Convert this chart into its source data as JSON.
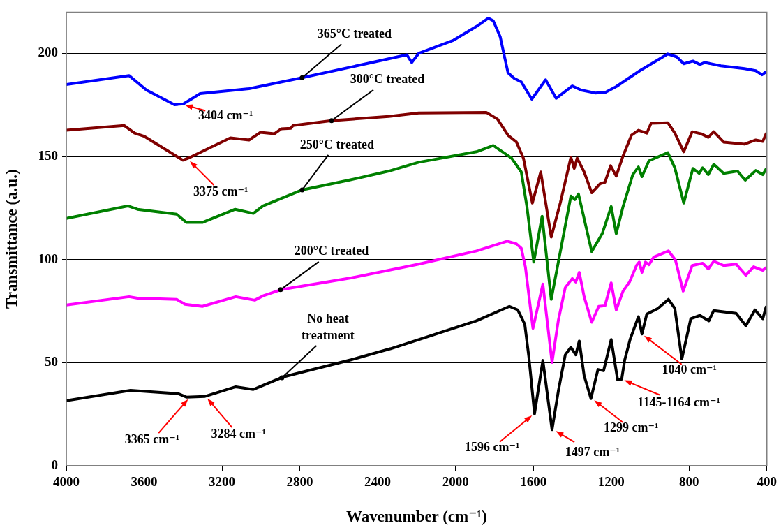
{
  "chart_data": {
    "type": "line",
    "xlabel": "Wavenumber (cm⁻¹)",
    "ylabel": "Transmittance (a.u.)",
    "xlim": [
      4000,
      400
    ],
    "xticks": [
      4000,
      3600,
      3200,
      2800,
      2400,
      2000,
      1600,
      1200,
      800,
      400
    ],
    "ylim": [
      0,
      220
    ],
    "yticks": [
      0,
      50,
      100,
      150,
      200
    ],
    "grid": "y",
    "legend": false,
    "marker": "none",
    "line_style": "solid",
    "series": [
      {
        "color": "#0000ff",
        "x": [
          4000,
          3677,
          3588,
          3444,
          3398,
          3312,
          3061,
          2788,
          2250,
          2225,
          2189,
          2010,
          1892,
          1831,
          1806,
          1770,
          1748,
          1730,
          1698,
          1662,
          1608,
          1537,
          1483,
          1400,
          1354,
          1282,
          1228,
          1174,
          1053,
          909,
          863,
          827,
          780,
          744,
          719,
          637,
          515,
          457,
          425,
          407
        ],
        "values": [
          184.9,
          189.2,
          182.2,
          175.1,
          175.5,
          180.5,
          182.9,
          188.2,
          199.3,
          195.6,
          200,
          206.4,
          213.1,
          217.1,
          215.8,
          208,
          198.3,
          190.6,
          187.9,
          186.2,
          177.8,
          187.2,
          178.2,
          184.2,
          182.2,
          180.8,
          181.2,
          183.9,
          191.6,
          199.7,
          198.3,
          195,
          196.3,
          194.6,
          195.6,
          194,
          192.6,
          191.6,
          189.6,
          190.9
        ]
      },
      {
        "color": "#800000",
        "x": [
          4000,
          3702,
          3649,
          3598,
          3401,
          3373,
          3157,
          3061,
          3003,
          2931,
          2896,
          2846,
          2835,
          2637,
          2343,
          2189,
          1842,
          1784,
          1730,
          1687,
          1651,
          1605,
          1562,
          1508,
          1461,
          1407,
          1390,
          1375,
          1339,
          1300,
          1257,
          1232,
          1203,
          1174,
          1139,
          1096,
          1060,
          1017,
          995,
          909,
          873,
          827,
          784,
          737,
          701,
          673,
          622,
          515,
          457,
          421,
          404
        ],
        "values": [
          162.7,
          165,
          161.3,
          159.7,
          148.2,
          149.2,
          159,
          158,
          161.7,
          161,
          163.4,
          163.7,
          165,
          167.4,
          169.4,
          171.1,
          171.4,
          168.1,
          160.3,
          157,
          149.2,
          127.4,
          142.5,
          110.9,
          127.7,
          149.6,
          144.2,
          149.2,
          142.5,
          132.4,
          136.8,
          137.5,
          145.5,
          140.5,
          150.3,
          160.3,
          162.7,
          161.3,
          166.1,
          166.4,
          161.3,
          152.3,
          162,
          161,
          159.3,
          162,
          157,
          156,
          158,
          157.3,
          161
        ]
      },
      {
        "color": "#008000",
        "x": [
          4000,
          3684,
          3634,
          3433,
          3383,
          3301,
          3132,
          3039,
          2989,
          2788,
          2548,
          2343,
          2189,
          1892,
          1806,
          1712,
          1662,
          1633,
          1598,
          1555,
          1508,
          1407,
          1386,
          1368,
          1300,
          1246,
          1200,
          1174,
          1139,
          1089,
          1060,
          1042,
          1006,
          909,
          873,
          827,
          780,
          748,
          730,
          701,
          673,
          622,
          551,
          511,
          457,
          421,
          404
        ],
        "values": [
          120,
          126,
          124.4,
          122,
          118,
          118,
          124.4,
          122.4,
          126,
          133.8,
          138.5,
          142.9,
          147.2,
          152.3,
          155.3,
          149.2,
          142.5,
          125.7,
          98.8,
          121,
          80.7,
          130.8,
          129.1,
          131.8,
          103.9,
          112.6,
          125.7,
          112.6,
          125.7,
          141.2,
          144.9,
          140.2,
          147.9,
          151.9,
          144.5,
          127.4,
          144.2,
          141.8,
          144.5,
          141.2,
          146.2,
          141.8,
          142.9,
          138.5,
          143.2,
          141.2,
          143.9
        ]
      },
      {
        "color": "#ff00ff",
        "x": [
          4000,
          3677,
          3634,
          3433,
          3390,
          3301,
          3129,
          3032,
          2989,
          2896,
          2537,
          2189,
          1892,
          1734,
          1687,
          1662,
          1641,
          1602,
          1551,
          1504,
          1472,
          1436,
          1400,
          1382,
          1364,
          1339,
          1300,
          1264,
          1232,
          1200,
          1174,
          1139,
          1106,
          1070,
          1056,
          1042,
          1024,
          1006,
          981,
          906,
          870,
          830,
          784,
          730,
          701,
          673,
          622,
          558,
          508,
          468,
          421,
          404
        ],
        "values": [
          78,
          82,
          81.3,
          80.7,
          78.3,
          77.3,
          82,
          80.3,
          82.4,
          85.4,
          91.1,
          97.8,
          104.2,
          108.9,
          107.6,
          105.5,
          96.5,
          66.6,
          88.1,
          50.1,
          70.3,
          86.4,
          90.8,
          89.1,
          93.8,
          82,
          69.6,
          77.3,
          77.6,
          88.7,
          75.6,
          84.7,
          89.1,
          97.1,
          98.8,
          93.8,
          98.8,
          97.5,
          101.2,
          104.2,
          99.8,
          84.7,
          97.1,
          98.2,
          95.5,
          99.2,
          97.1,
          97.8,
          92.4,
          96.5,
          94.8,
          96.1
        ]
      },
      {
        "color": "#000000",
        "x": [
          4000,
          3670,
          3426,
          3383,
          3290,
          3129,
          3039,
          2989,
          2888,
          2537,
          2333,
          2189,
          1892,
          1723,
          1680,
          1644,
          1623,
          1594,
          1551,
          1504,
          1472,
          1436,
          1407,
          1382,
          1364,
          1339,
          1304,
          1268,
          1239,
          1200,
          1167,
          1146,
          1131,
          1103,
          1060,
          1042,
          1017,
          960,
          906,
          873,
          837,
          791,
          744,
          698,
          673,
          558,
          508,
          461,
          421,
          404
        ],
        "values": [
          31.6,
          36.6,
          35,
          33.3,
          33.6,
          38.3,
          37,
          39,
          43,
          51.4,
          56.8,
          61.2,
          70.3,
          77.3,
          75.6,
          68.6,
          52.8,
          25.2,
          51.1,
          17.5,
          36,
          53.8,
          57.5,
          53.8,
          60.5,
          43.7,
          32.6,
          46.7,
          46.1,
          61.2,
          41.7,
          42,
          51.1,
          61.2,
          72.3,
          63.9,
          73.6,
          76.3,
          80.7,
          76.3,
          51.8,
          71.3,
          72.9,
          70.3,
          75.3,
          73.9,
          67.9,
          75.6,
          71.3,
          77
        ]
      }
    ],
    "annotations": [
      {
        "text": "365°C treated",
        "x": 2788,
        "y": 188.2
      },
      {
        "text": "300°C treated",
        "x": 2637,
        "y": 167.4
      },
      {
        "text": "250°C treated",
        "x": 2788,
        "y": 133.8
      },
      {
        "text": "200°C treated",
        "x": 2899,
        "y": 85.4
      },
      {
        "text": "No heat treatment",
        "x": 2892,
        "y": 42.7
      },
      {
        "text": "3404 cm⁻¹",
        "x": 3404,
        "y": 175.3
      },
      {
        "text": "3375 cm⁻¹",
        "x": 3375,
        "y": 148.7
      },
      {
        "text": "3365 cm⁻¹",
        "x": 3365,
        "y": 33.3
      },
      {
        "text": "3284 cm⁻¹",
        "x": 3284,
        "y": 33.6
      },
      {
        "text": "1596 cm⁻¹",
        "x": 1596,
        "y": 25.2
      },
      {
        "text": "1497 cm⁻¹",
        "x": 1497,
        "y": 17.5
      },
      {
        "text": "1299 cm⁻¹",
        "x": 1299,
        "y": 32.6
      },
      {
        "text": "1145-1164 cm⁻¹",
        "x": 1146,
        "y": 42
      },
      {
        "text": "1040 cm⁻¹",
        "x": 1042,
        "y": 63.9
      }
    ]
  }
}
